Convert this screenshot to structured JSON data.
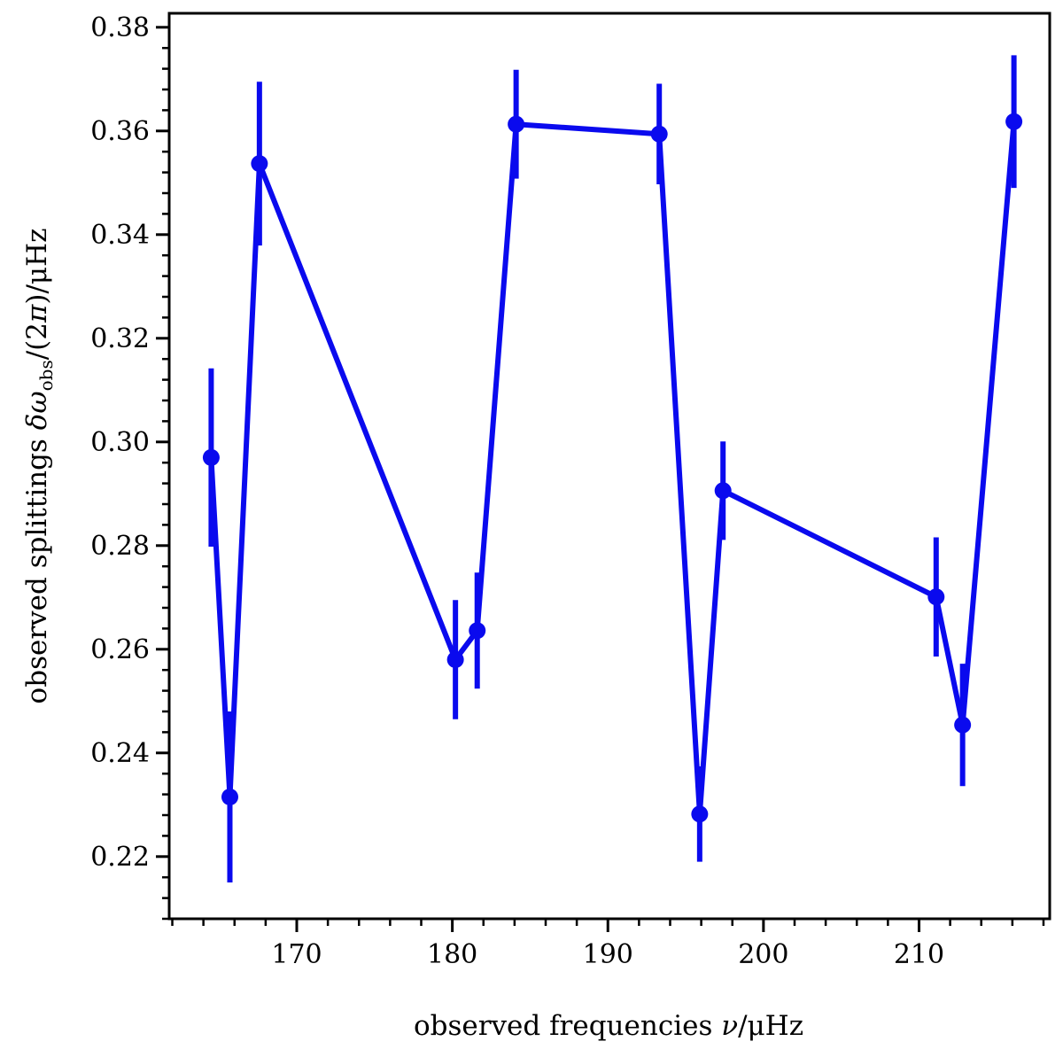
{
  "chart_data": {
    "type": "line",
    "title": "",
    "xlabel": {
      "prefix": "observed frequencies ",
      "symbol": "ν",
      "unit": "/μHz"
    },
    "ylabel": {
      "prefix": "observed splittings ",
      "symbol": "δω",
      "subscript": "obs",
      "middle": "/(2",
      "pi": "π",
      "suffix": ")/μHz"
    },
    "xlim": [
      161.8,
      218.4
    ],
    "ylim": [
      0.208,
      0.3827
    ],
    "x_major_ticks": [
      170,
      180,
      190,
      200,
      210
    ],
    "x_tick_labels": [
      "170",
      "180",
      "190",
      "200",
      "210"
    ],
    "x_minor_step": 2,
    "y_major_ticks": [
      0.22,
      0.24,
      0.26,
      0.28,
      0.3,
      0.32,
      0.34,
      0.36,
      0.38
    ],
    "y_tick_labels": [
      "0.22",
      "0.24",
      "0.26",
      "0.28",
      "0.30",
      "0.32",
      "0.34",
      "0.36",
      "0.38"
    ],
    "y_minor_step": 0.004,
    "grid": false,
    "legend": "none",
    "color": "#0a0aee",
    "series": [
      {
        "points": [
          {
            "x": 164.5,
            "y": 0.297,
            "err": 0.0172
          },
          {
            "x": 165.7,
            "y": 0.2315,
            "err": 0.0165
          },
          {
            "x": 167.6,
            "y": 0.3537,
            "err": 0.0158
          },
          {
            "x": 180.2,
            "y": 0.258,
            "err": 0.0115
          },
          {
            "x": 181.6,
            "y": 0.2636,
            "err": 0.0112
          },
          {
            "x": 184.1,
            "y": 0.3613,
            "err": 0.0105
          },
          {
            "x": 193.3,
            "y": 0.3594,
            "err": 0.0097
          },
          {
            "x": 195.9,
            "y": 0.2282,
            "err": 0.0092
          },
          {
            "x": 197.4,
            "y": 0.2906,
            "err": 0.0095
          },
          {
            "x": 211.1,
            "y": 0.2701,
            "err": 0.0115
          },
          {
            "x": 212.8,
            "y": 0.2454,
            "err": 0.0118
          },
          {
            "x": 216.1,
            "y": 0.3618,
            "err": 0.0128
          }
        ]
      }
    ]
  }
}
